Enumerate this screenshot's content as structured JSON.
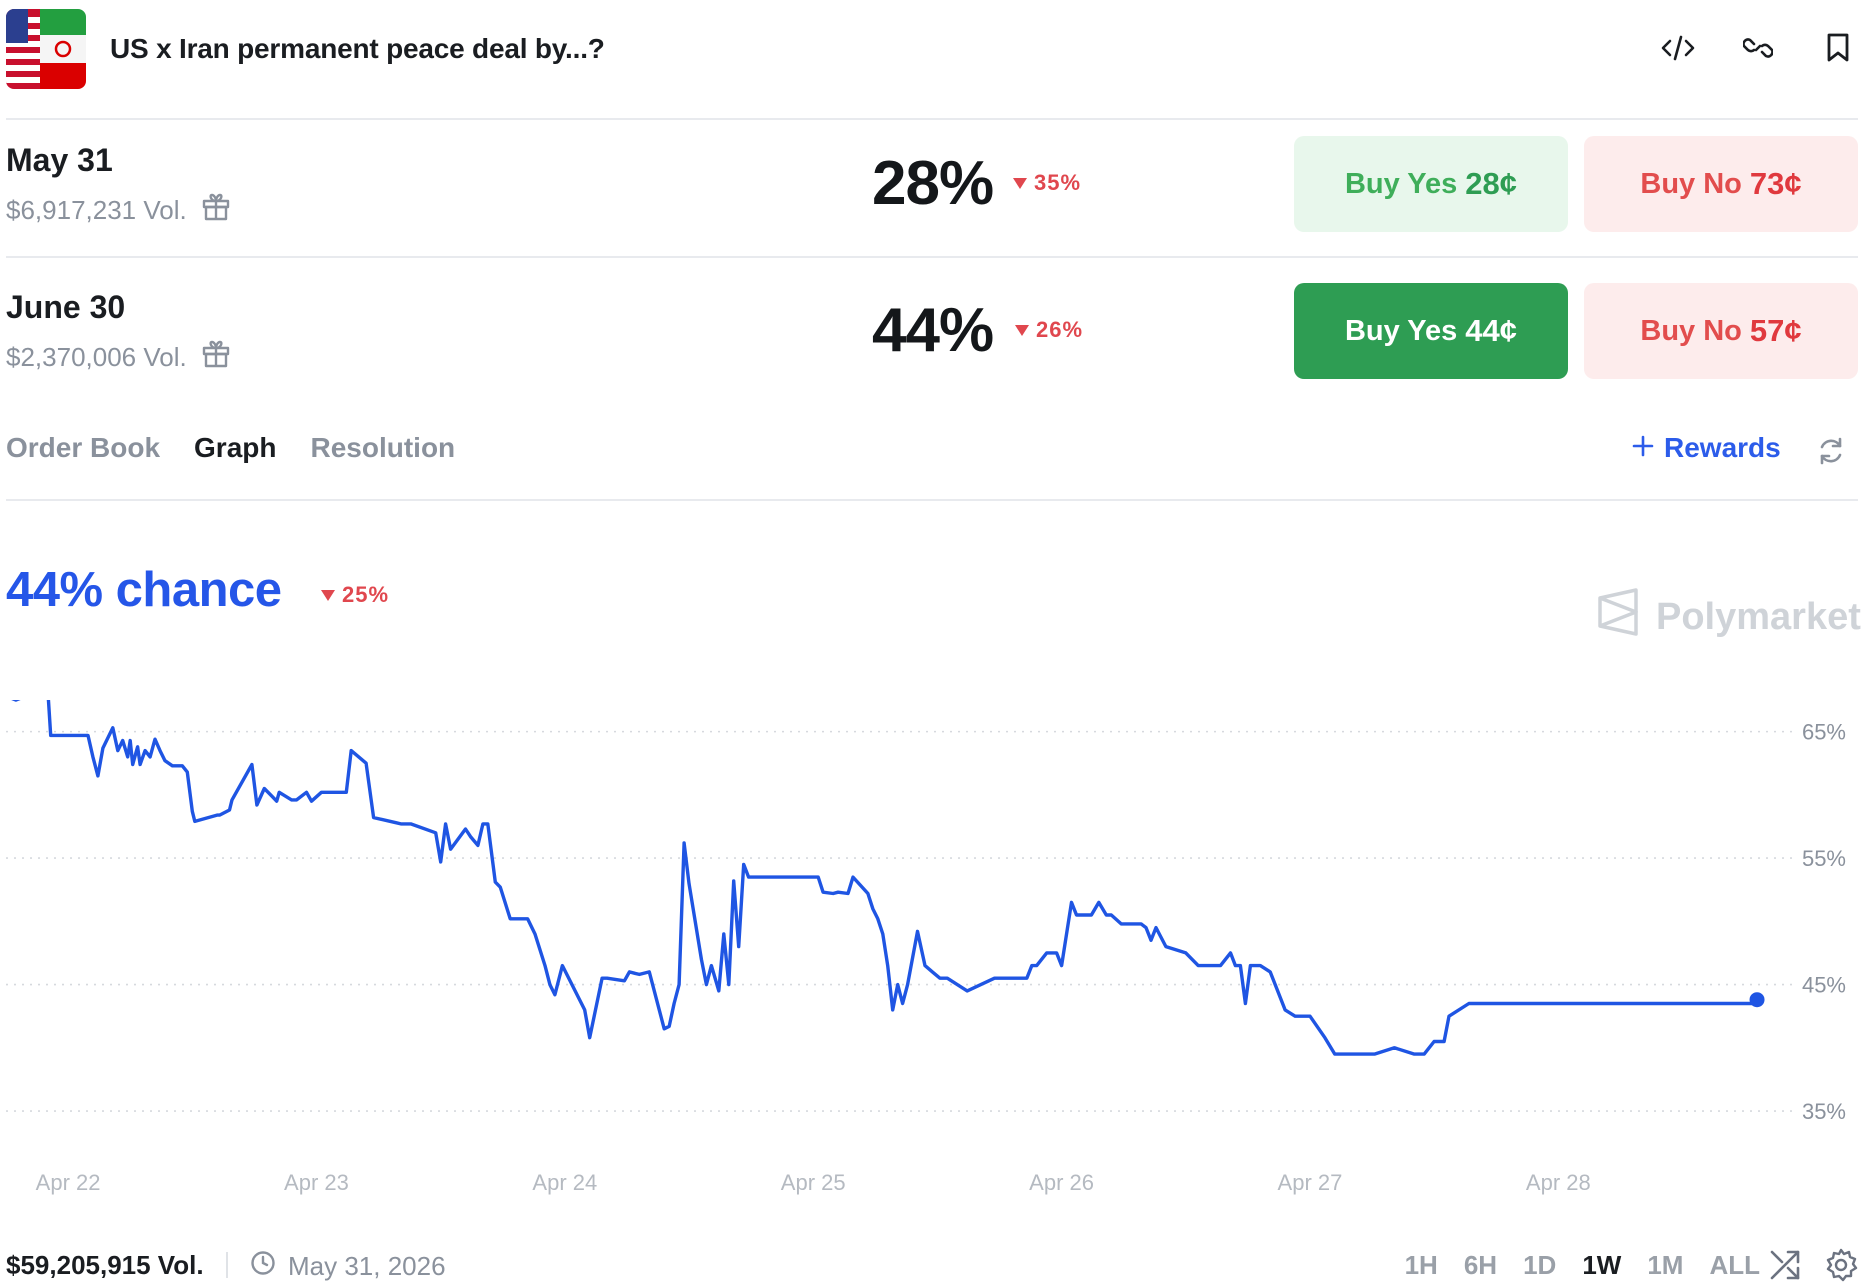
{
  "header": {
    "title": "US x Iran permanent peace deal by...?",
    "thumbnail_icon": "us-iran-flags-image",
    "icons": [
      "embed-code-icon",
      "link-icon",
      "bookmark-icon"
    ]
  },
  "markets": [
    {
      "date": "May 31",
      "volume": "$6,917,231 Vol.",
      "percent": "28%",
      "change": "35%",
      "change_direction": "down",
      "buy_yes_label": "Buy Yes",
      "buy_yes_price": "28¢",
      "buy_no_label": "Buy No",
      "buy_no_price": "73¢",
      "selected": false
    },
    {
      "date": "June 30",
      "volume": "$2,370,006 Vol.",
      "percent": "44%",
      "change": "26%",
      "change_direction": "down",
      "buy_yes_label": "Buy Yes",
      "buy_yes_price": "44¢",
      "buy_no_label": "Buy No",
      "buy_no_price": "57¢",
      "selected": true
    }
  ],
  "tabs": [
    {
      "label": "Order Book",
      "active": false
    },
    {
      "label": "Graph",
      "active": true
    },
    {
      "label": "Resolution",
      "active": false
    }
  ],
  "rewards_label": "Rewards",
  "chance": {
    "label": "44% chance",
    "change": "25%",
    "change_direction": "down"
  },
  "watermark": "Polymarket",
  "chart_data": {
    "type": "line",
    "title": "",
    "xlabel": "",
    "ylabel": "",
    "x_tick_labels": [
      "Apr 22",
      "Apr 23",
      "Apr 24",
      "Apr 25",
      "Apr 26",
      "Apr 27",
      "Apr 28"
    ],
    "y_tick_labels": [
      "65%",
      "55%",
      "45%",
      "35%"
    ],
    "y_ticks": [
      65,
      55,
      45,
      35
    ],
    "ylim": [
      33.5,
      67.5
    ],
    "xlim": [
      21.75,
      28.82
    ],
    "x_unit": "day of April 2026",
    "grid": true,
    "line_color": "#1f55e3",
    "series": [
      {
        "x": [
          21.75,
          21.79,
          21.83,
          21.92,
          21.93,
          22.08,
          22.1,
          22.12,
          22.14,
          22.18,
          22.2,
          22.22,
          22.24,
          22.25,
          22.26,
          22.28,
          22.29,
          22.31,
          22.33,
          22.35,
          22.37,
          22.39,
          22.42,
          22.46,
          22.48,
          22.5,
          22.51,
          22.6,
          22.61,
          22.65,
          22.66,
          22.74,
          22.76,
          22.79,
          22.82,
          22.84,
          22.85,
          22.9,
          22.92,
          22.96,
          22.98,
          23.02,
          23.12,
          23.14,
          23.2,
          23.23,
          23.32,
          23.34,
          23.38,
          23.48,
          23.5,
          23.52,
          23.54,
          23.6,
          23.62,
          23.65,
          23.67,
          23.69,
          23.72,
          23.74,
          23.78,
          23.85,
          23.88,
          23.92,
          23.94,
          23.96,
          23.99,
          24.08,
          24.1,
          24.15,
          24.17,
          24.24,
          24.26,
          24.28,
          24.3,
          24.34,
          24.4,
          24.42,
          24.44,
          24.46,
          24.48,
          24.5,
          24.55,
          24.57,
          24.59,
          24.62,
          24.64,
          24.66,
          24.68,
          24.7,
          24.72,
          24.74,
          24.84,
          24.86,
          24.9,
          24.92,
          24.93,
          24.96,
          24.99,
          25.02,
          25.04,
          25.08,
          25.1,
          25.14,
          25.16,
          25.22,
          25.24,
          25.26,
          25.28,
          25.3,
          25.32,
          25.34,
          25.36,
          25.38,
          25.42,
          25.45,
          25.48,
          25.51,
          25.54,
          25.62,
          25.73,
          25.86,
          25.88,
          25.9,
          25.94,
          25.98,
          26.0,
          26.04,
          26.06,
          26.12,
          26.15,
          26.18,
          26.2,
          26.24,
          26.32,
          26.34,
          26.36,
          26.38,
          26.42,
          26.5,
          26.55,
          26.6,
          26.64,
          26.68,
          26.7,
          26.72,
          26.74,
          26.76,
          26.78,
          26.8,
          26.84,
          26.9,
          26.94,
          27.0,
          27.06,
          27.1,
          27.22,
          27.26,
          27.34,
          27.42,
          27.46,
          27.5,
          27.54,
          27.56,
          27.64,
          27.66,
          27.68,
          27.7,
          27.72,
          27.82,
          27.86,
          27.88,
          27.9,
          28.0,
          28.04,
          28.06,
          28.1,
          28.14,
          28.18,
          28.2,
          28.26,
          28.3,
          28.36,
          28.42,
          28.46,
          28.5,
          28.56,
          28.62,
          28.64,
          28.7,
          28.72,
          28.74,
          28.76,
          28.8
        ],
        "y": [
          67.8,
          67.5,
          67.8,
          67.8,
          64.7,
          64.7,
          63.0,
          61.5,
          63.7,
          65.3,
          63.5,
          64.3,
          63.0,
          64.3,
          62.4,
          63.8,
          62.4,
          63.5,
          63.0,
          64.4,
          63.5,
          62.7,
          62.3,
          62.3,
          61.8,
          58.7,
          57.9,
          58.4,
          58.4,
          58.8,
          59.6,
          62.4,
          59.2,
          60.5,
          59.9,
          59.5,
          60.2,
          59.6,
          59.6,
          60.2,
          59.5,
          60.2,
          60.2,
          63.5,
          62.5,
          58.2,
          57.8,
          57.7,
          57.7,
          57.0,
          54.7,
          57.7,
          55.7,
          57.3,
          56.7,
          56.0,
          57.7,
          57.7,
          53.1,
          52.7,
          50.2,
          50.2,
          49.0,
          46.5,
          45.0,
          44.2,
          46.5,
          43.0,
          40.8,
          45.5,
          45.5,
          45.3,
          46.0,
          45.9,
          45.8,
          46.0,
          41.5,
          41.7,
          43.5,
          45.0,
          56.2,
          53.0,
          47.0,
          45.0,
          46.5,
          44.5,
          49.0,
          45.0,
          53.2,
          48.0,
          54.5,
          53.5,
          53.5,
          53.5,
          53.5,
          53.5,
          53.5,
          53.5,
          53.5,
          53.5,
          52.3,
          52.2,
          52.3,
          52.2,
          53.5,
          52.2,
          51.0,
          50.2,
          49.0,
          46.5,
          43.0,
          45.0,
          43.5,
          45.0,
          49.2,
          46.5,
          46.0,
          45.5,
          45.5,
          44.5,
          45.5,
          45.5,
          46.5,
          46.5,
          47.5,
          47.5,
          46.5,
          51.5,
          50.5,
          50.5,
          51.5,
          50.5,
          50.5,
          49.8,
          49.8,
          49.5,
          48.5,
          49.5,
          48.0,
          47.5,
          46.5,
          46.5,
          46.5,
          47.5,
          46.5,
          46.5,
          43.5,
          46.5,
          46.5,
          46.5,
          46.0,
          43.0,
          42.5,
          42.5,
          40.8,
          39.5,
          39.5,
          39.5,
          40.0,
          39.5,
          39.5,
          40.5,
          40.5,
          42.5,
          43.5,
          43.5,
          43.5,
          43.5,
          43.5,
          43.5,
          43.5,
          43.5,
          43.5,
          43.5,
          43.5,
          43.5,
          43.5,
          43.5,
          43.5,
          43.5,
          43.5,
          43.5,
          43.5,
          43.5,
          43.5,
          43.5,
          43.5,
          43.5,
          43.5,
          43.5,
          43.5,
          43.5,
          43.5,
          43.5
        ]
      }
    ],
    "last_point": {
      "x": 28.8,
      "y": 43.8
    }
  },
  "footer": {
    "volume": "$59,205,915 Vol.",
    "end_date": "May 31, 2026",
    "ranges": [
      {
        "label": "1H",
        "active": false
      },
      {
        "label": "6H",
        "active": false
      },
      {
        "label": "1D",
        "active": false
      },
      {
        "label": "1W",
        "active": true
      },
      {
        "label": "1M",
        "active": false
      },
      {
        "label": "ALL",
        "active": false
      }
    ]
  }
}
